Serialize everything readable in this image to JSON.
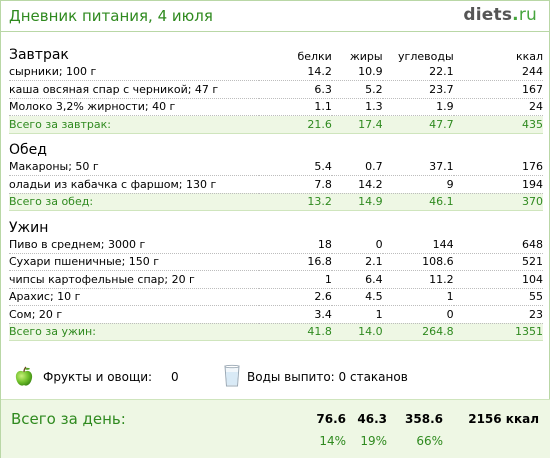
{
  "header": {
    "title": "Дневник питания, 4 июля",
    "logo_name": "diets",
    "logo_dot": ".",
    "logo_tld": "ru"
  },
  "columns": {
    "protein": "белки",
    "fat": "жиры",
    "carbs": "углеводы",
    "kcal": "ккал"
  },
  "sections": [
    {
      "title": "Завтрак",
      "items": [
        {
          "name": "сырники; 100 г",
          "protein": "14.2",
          "fat": "10.9",
          "carbs": "22.1",
          "kcal": "244"
        },
        {
          "name": "каша овсяная спар с черникой; 47 г",
          "protein": "6.3",
          "fat": "5.2",
          "carbs": "23.7",
          "kcal": "167"
        },
        {
          "name": "Молоко 3,2% жирности; 40 г",
          "protein": "1.1",
          "fat": "1.3",
          "carbs": "1.9",
          "kcal": "24"
        }
      ],
      "total": {
        "label": "Всего за завтрак:",
        "protein": "21.6",
        "fat": "17.4",
        "carbs": "47.7",
        "kcal": "435"
      }
    },
    {
      "title": "Обед",
      "items": [
        {
          "name": "Макароны; 50 г",
          "protein": "5.4",
          "fat": "0.7",
          "carbs": "37.1",
          "kcal": "176"
        },
        {
          "name": "оладьи из кабачка с фаршом; 130 г",
          "protein": "7.8",
          "fat": "14.2",
          "carbs": "9",
          "kcal": "194"
        }
      ],
      "total": {
        "label": "Всего за обед:",
        "protein": "13.2",
        "fat": "14.9",
        "carbs": "46.1",
        "kcal": "370"
      }
    },
    {
      "title": "Ужин",
      "items": [
        {
          "name": "Пиво в среднем; 3000 г",
          "protein": "18",
          "fat": "0",
          "carbs": "144",
          "kcal": "648"
        },
        {
          "name": "Сухари пшеничные; 150 г",
          "protein": "16.8",
          "fat": "2.1",
          "carbs": "108.6",
          "kcal": "521"
        },
        {
          "name": "чипсы картофельные спар; 20 г",
          "protein": "1",
          "fat": "6.4",
          "carbs": "11.2",
          "kcal": "104"
        },
        {
          "name": "Арахис; 10 г",
          "protein": "2.6",
          "fat": "4.5",
          "carbs": "1",
          "kcal": "55"
        },
        {
          "name": "Сом; 20 г",
          "protein": "3.4",
          "fat": "1",
          "carbs": "0",
          "kcal": "23"
        }
      ],
      "total": {
        "label": "Всего за ужин:",
        "protein": "41.8",
        "fat": "14.0",
        "carbs": "264.8",
        "kcal": "1351"
      }
    }
  ],
  "extras": {
    "fruit_icon": "apple-icon",
    "fruit_label": "Фрукты и овощи:",
    "fruit_value": "0",
    "water_icon": "glass-icon",
    "water_label": "Воды выпито: 0 стаканов"
  },
  "day_total": {
    "label": "Всего за день:",
    "protein": "76.6",
    "fat": "46.3",
    "carbs": "358.6",
    "kcal": "2156 ккал",
    "protein_pct": "14%",
    "fat_pct": "19%",
    "carbs_pct": "66%"
  },
  "colors": {
    "accent_green": "#2f8a1f",
    "total_bg": "#eef7e4",
    "border": "#b9d7a6"
  }
}
